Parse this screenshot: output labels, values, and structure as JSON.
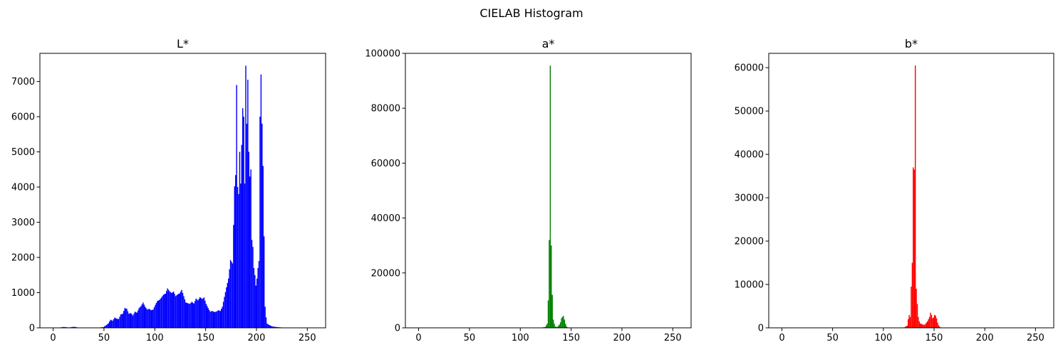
{
  "figure": {
    "suptitle": "CIELAB Histogram"
  },
  "chart_data": [
    {
      "type": "bar",
      "title": "L*",
      "color": "#0000ff",
      "xlim": [
        -13,
        268
      ],
      "ylim": [
        0,
        7800
      ],
      "xticks": [
        0,
        50,
        100,
        150,
        200,
        250
      ],
      "yticks": [
        0,
        1000,
        2000,
        3000,
        4000,
        5000,
        6000,
        7000
      ],
      "points": [
        [
          0,
          0
        ],
        [
          5,
          5
        ],
        [
          10,
          25
        ],
        [
          15,
          10
        ],
        [
          20,
          30
        ],
        [
          25,
          5
        ],
        [
          30,
          5
        ],
        [
          35,
          5
        ],
        [
          40,
          5
        ],
        [
          45,
          10
        ],
        [
          49,
          20
        ],
        [
          52,
          80
        ],
        [
          54,
          130
        ],
        [
          56,
          230
        ],
        [
          58,
          200
        ],
        [
          60,
          290
        ],
        [
          62,
          260
        ],
        [
          64,
          250
        ],
        [
          66,
          380
        ],
        [
          68,
          400
        ],
        [
          70,
          560
        ],
        [
          72,
          540
        ],
        [
          74,
          400
        ],
        [
          76,
          420
        ],
        [
          78,
          350
        ],
        [
          80,
          460
        ],
        [
          82,
          430
        ],
        [
          84,
          560
        ],
        [
          86,
          620
        ],
        [
          88,
          720
        ],
        [
          90,
          600
        ],
        [
          92,
          520
        ],
        [
          94,
          540
        ],
        [
          96,
          500
        ],
        [
          98,
          520
        ],
        [
          100,
          650
        ],
        [
          102,
          760
        ],
        [
          104,
          790
        ],
        [
          106,
          860
        ],
        [
          108,
          940
        ],
        [
          110,
          970
        ],
        [
          112,
          1120
        ],
        [
          114,
          1040
        ],
        [
          116,
          990
        ],
        [
          118,
          1030
        ],
        [
          120,
          900
        ],
        [
          122,
          950
        ],
        [
          124,
          980
        ],
        [
          126,
          1080
        ],
        [
          128,
          900
        ],
        [
          130,
          720
        ],
        [
          132,
          700
        ],
        [
          134,
          680
        ],
        [
          136,
          740
        ],
        [
          138,
          690
        ],
        [
          140,
          830
        ],
        [
          142,
          780
        ],
        [
          144,
          870
        ],
        [
          146,
          820
        ],
        [
          148,
          860
        ],
        [
          150,
          680
        ],
        [
          152,
          560
        ],
        [
          154,
          460
        ],
        [
          156,
          480
        ],
        [
          158,
          450
        ],
        [
          160,
          460
        ],
        [
          162,
          500
        ],
        [
          164,
          480
        ],
        [
          166,
          600
        ],
        [
          168,
          880
        ],
        [
          170,
          1150
        ],
        [
          172,
          1400
        ],
        [
          174,
          1930
        ],
        [
          176,
          1830
        ],
        [
          178,
          4020
        ],
        [
          179,
          4340
        ],
        [
          180,
          6900
        ],
        [
          181,
          4000
        ],
        [
          182,
          3800
        ],
        [
          183,
          5000
        ],
        [
          184,
          4100
        ],
        [
          185,
          5200
        ],
        [
          186,
          6240
        ],
        [
          187,
          6000
        ],
        [
          188,
          4100
        ],
        [
          189,
          7450
        ],
        [
          190,
          5800
        ],
        [
          191,
          7050
        ],
        [
          192,
          5000
        ],
        [
          193,
          4300
        ],
        [
          194,
          4500
        ],
        [
          195,
          2500
        ],
        [
          196,
          2300
        ],
        [
          197,
          1700
        ],
        [
          198,
          1500
        ],
        [
          199,
          1200
        ],
        [
          200,
          1400
        ],
        [
          201,
          1700
        ],
        [
          202,
          1900
        ],
        [
          203,
          6000
        ],
        [
          204,
          7200
        ],
        [
          205,
          5800
        ],
        [
          206,
          4600
        ],
        [
          207,
          2600
        ],
        [
          208,
          600
        ],
        [
          209,
          300
        ],
        [
          210,
          120
        ],
        [
          212,
          80
        ],
        [
          215,
          40
        ],
        [
          220,
          20
        ],
        [
          225,
          10
        ],
        [
          230,
          10
        ],
        [
          240,
          5
        ],
        [
          250,
          0
        ],
        [
          255,
          0
        ]
      ]
    },
    {
      "type": "bar",
      "title": "a*",
      "color": "#008000",
      "xlim": [
        -13,
        268
      ],
      "ylim": [
        0,
        100000
      ],
      "xticks": [
        0,
        50,
        100,
        150,
        200,
        250
      ],
      "yticks": [
        0,
        20000,
        40000,
        60000,
        80000,
        100000
      ],
      "points": [
        [
          0,
          0
        ],
        [
          50,
          0
        ],
        [
          100,
          0
        ],
        [
          120,
          100
        ],
        [
          124,
          300
        ],
        [
          126,
          1500
        ],
        [
          127,
          10000
        ],
        [
          128,
          32000
        ],
        [
          129,
          95500
        ],
        [
          130,
          30000
        ],
        [
          131,
          12000
        ],
        [
          132,
          3000
        ],
        [
          133,
          1500
        ],
        [
          134,
          500
        ],
        [
          135,
          300
        ],
        [
          136,
          400
        ],
        [
          137,
          700
        ],
        [
          138,
          1200
        ],
        [
          139,
          2000
        ],
        [
          140,
          3500
        ],
        [
          141,
          4000
        ],
        [
          142,
          4300
        ],
        [
          143,
          3000
        ],
        [
          144,
          1500
        ],
        [
          145,
          500
        ],
        [
          146,
          200
        ],
        [
          148,
          100
        ],
        [
          150,
          50
        ],
        [
          155,
          0
        ],
        [
          200,
          0
        ],
        [
          255,
          0
        ]
      ]
    },
    {
      "type": "bar",
      "title": "b*",
      "color": "#ff0000",
      "xlim": [
        -13,
        268
      ],
      "ylim": [
        0,
        63300
      ],
      "xticks": [
        0,
        50,
        100,
        150,
        200,
        250
      ],
      "yticks": [
        0,
        10000,
        20000,
        30000,
        40000,
        50000,
        60000
      ],
      "points": [
        [
          0,
          0
        ],
        [
          50,
          0
        ],
        [
          100,
          0
        ],
        [
          120,
          100
        ],
        [
          123,
          500
        ],
        [
          124,
          2000
        ],
        [
          125,
          3000
        ],
        [
          126,
          2500
        ],
        [
          127,
          9500
        ],
        [
          128,
          15000
        ],
        [
          129,
          37000
        ],
        [
          130,
          36500
        ],
        [
          131,
          60500
        ],
        [
          132,
          9000
        ],
        [
          133,
          5500
        ],
        [
          134,
          2500
        ],
        [
          135,
          1500
        ],
        [
          136,
          1000
        ],
        [
          137,
          900
        ],
        [
          138,
          800
        ],
        [
          139,
          700
        ],
        [
          140,
          700
        ],
        [
          141,
          900
        ],
        [
          142,
          1200
        ],
        [
          143,
          1500
        ],
        [
          144,
          2000
        ],
        [
          145,
          2500
        ],
        [
          146,
          3500
        ],
        [
          147,
          3000
        ],
        [
          148,
          2200
        ],
        [
          149,
          2400
        ],
        [
          150,
          3000
        ],
        [
          151,
          2800
        ],
        [
          152,
          2200
        ],
        [
          153,
          1200
        ],
        [
          154,
          600
        ],
        [
          155,
          300
        ],
        [
          156,
          100
        ],
        [
          158,
          50
        ],
        [
          160,
          0
        ],
        [
          200,
          0
        ],
        [
          255,
          0
        ]
      ]
    }
  ]
}
